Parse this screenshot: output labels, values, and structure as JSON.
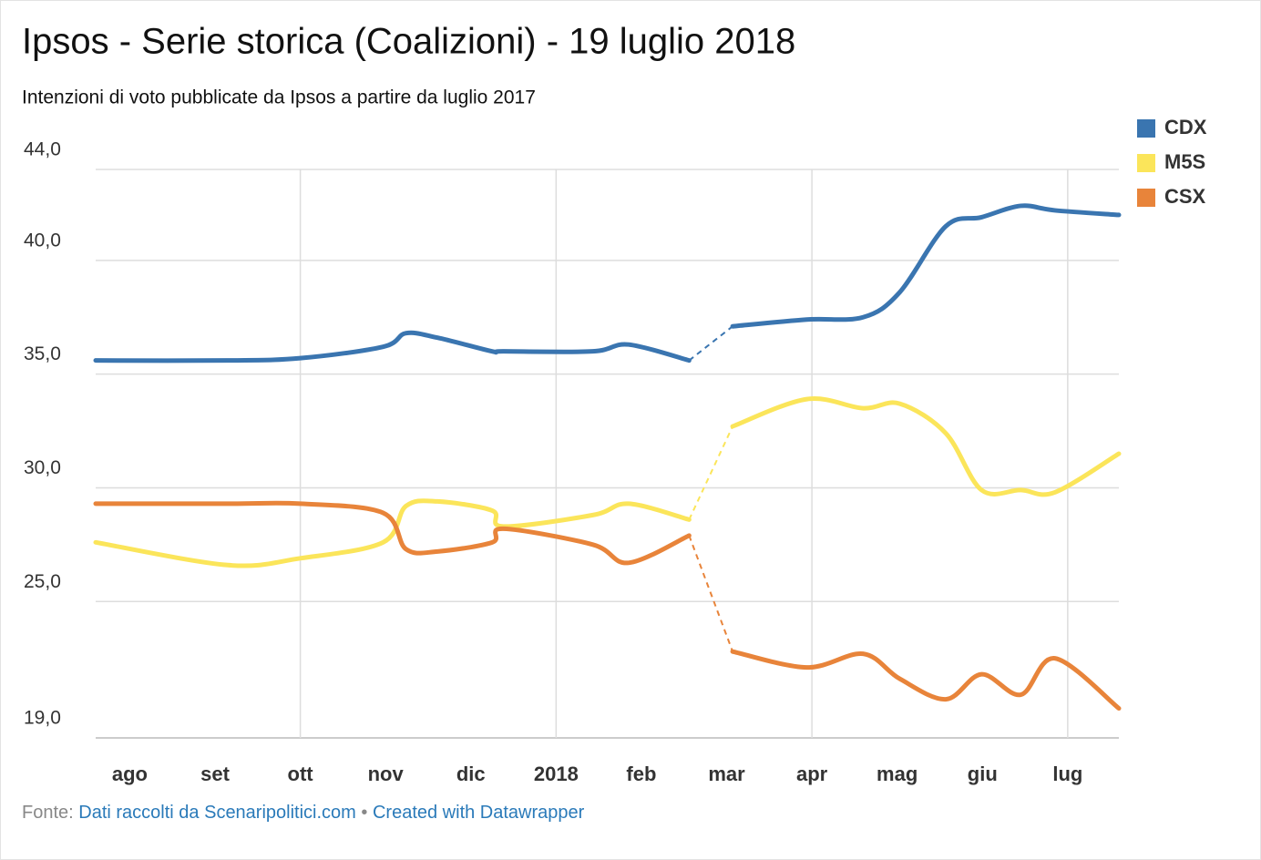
{
  "chart_data": {
    "type": "line",
    "title": "Ipsos - Serie storica (Coalizioni) - 19 luglio 2018",
    "subtitle": "Intenzioni di voto pubblicate da Ipsos a partire da luglio 2017",
    "source_label": "Fonte:",
    "source_text": "Dati raccolti da Scenaripolitici.com",
    "separator": "•",
    "credit_text": "Created with Datawrapper",
    "x": [
      -0.4,
      1.15,
      2.0,
      2.97,
      3.24,
      3.61,
      4.25,
      4.38,
      5.43,
      5.85,
      6.56,
      null,
      7.07,
      7.94,
      8.6,
      9.03,
      9.57,
      9.99,
      10.45,
      10.85,
      11.6
    ],
    "series": [
      {
        "name": "CDX",
        "color": "#3a75b0",
        "values": [
          35.6,
          35.6,
          35.7,
          36.2,
          36.8,
          36.6,
          36.0,
          36.0,
          36.0,
          36.3,
          35.6,
          null,
          37.1,
          37.4,
          37.5,
          38.6,
          41.5,
          41.9,
          42.4,
          42.2,
          42.0
        ]
      },
      {
        "name": "M5S",
        "color": "#fbe55a",
        "values": [
          27.6,
          26.6,
          26.9,
          27.6,
          29.2,
          29.4,
          29.0,
          28.3,
          28.8,
          29.3,
          28.6,
          null,
          32.7,
          33.9,
          33.5,
          33.7,
          32.4,
          29.9,
          29.9,
          29.8,
          31.5
        ]
      },
      {
        "name": "CSX",
        "color": "#e8843a",
        "values": [
          29.3,
          29.3,
          29.3,
          28.9,
          27.3,
          27.2,
          27.6,
          28.2,
          27.5,
          26.7,
          27.9,
          null,
          22.8,
          22.1,
          22.7,
          21.6,
          20.7,
          21.8,
          20.9,
          22.5,
          20.3
        ]
      }
    ],
    "xlim": [
      -0.4,
      11.6
    ],
    "xticks": [
      {
        "value": 0,
        "label": "ago"
      },
      {
        "value": 1,
        "label": "set"
      },
      {
        "value": 2,
        "label": "ott"
      },
      {
        "value": 3,
        "label": "nov"
      },
      {
        "value": 4,
        "label": "dic"
      },
      {
        "value": 5,
        "label": "2018"
      },
      {
        "value": 6,
        "label": "feb"
      },
      {
        "value": 7,
        "label": "mar"
      },
      {
        "value": 8,
        "label": "apr"
      },
      {
        "value": 9,
        "label": "mag"
      },
      {
        "value": 10,
        "label": "giu"
      },
      {
        "value": 11,
        "label": "lug"
      }
    ],
    "xgrid": [
      2,
      5,
      8,
      11
    ],
    "ylim": [
      19,
      44
    ],
    "yticks": [
      {
        "value": 19,
        "label": "19,0"
      },
      {
        "value": 25,
        "label": "25,0"
      },
      {
        "value": 30,
        "label": "30,0"
      },
      {
        "value": 35,
        "label": "35,0"
      },
      {
        "value": 40,
        "label": "40,0"
      },
      {
        "value": 44,
        "label": "44,0"
      }
    ],
    "grid": true,
    "gap_style": "dashed",
    "legend": "right"
  }
}
